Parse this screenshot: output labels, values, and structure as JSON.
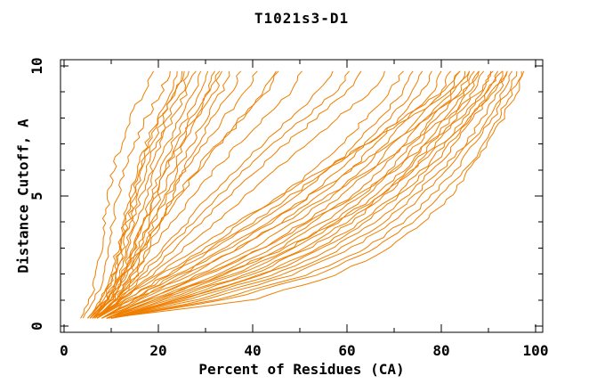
{
  "chart_data": {
    "type": "line",
    "title": "T1021s3-D1",
    "xlabel": "Percent of Residues (CA)",
    "ylabel": "Distance Cutoff, A",
    "xlim": [
      0,
      100
    ],
    "ylim": [
      0,
      10
    ],
    "xticks_major": [
      0,
      20,
      40,
      60,
      80,
      100
    ],
    "xticks_minor": [
      10,
      30,
      50,
      70,
      90
    ],
    "yticks_major": [
      0,
      5,
      10
    ],
    "yticks_minor": [
      1,
      2,
      3,
      4,
      6,
      7,
      8,
      9
    ],
    "grid": false,
    "legend_position": "none",
    "line_color": "#ef7f00",
    "axis_color": "#000000",
    "background_color": "#ffffff",
    "cutoffs": [
      0.3,
      1,
      2,
      3,
      4,
      5,
      6,
      7,
      8,
      9,
      9.8
    ],
    "series": [
      [
        3.5,
        5.5,
        7,
        8,
        8.5,
        9.5,
        10.5,
        12,
        14,
        17,
        19
      ],
      [
        4,
        6.5,
        8.5,
        9.5,
        10.5,
        11.5,
        13,
        15,
        17.5,
        20.5,
        22.5
      ],
      [
        5,
        8,
        10,
        11.5,
        12.5,
        14,
        15.5,
        17.5,
        20,
        22.5,
        24
      ],
      [
        5,
        8.5,
        10.5,
        12,
        13.5,
        15,
        16.5,
        18.5,
        21,
        23.5,
        25
      ],
      [
        5,
        8,
        10.5,
        12,
        13,
        14.5,
        16,
        18,
        20.5,
        23.5,
        25.5
      ],
      [
        5.5,
        9,
        11,
        12.5,
        14,
        15.5,
        17.5,
        19.5,
        22,
        25,
        26.5
      ],
      [
        5.5,
        9,
        11.5,
        13,
        14.5,
        16.5,
        18.5,
        20.5,
        23,
        26,
        28
      ],
      [
        6,
        9.5,
        12,
        13.5,
        15.5,
        17.5,
        19.5,
        22,
        24.5,
        27.5,
        29
      ],
      [
        6,
        10,
        12.5,
        14.5,
        16.5,
        18.5,
        20.5,
        23,
        26,
        29,
        30.5
      ],
      [
        6.5,
        10.5,
        13,
        15,
        17,
        19.5,
        21.5,
        24,
        27,
        30.5,
        32
      ],
      [
        6,
        10,
        13,
        15,
        17,
        19,
        21.5,
        24.5,
        27.5,
        31,
        33
      ],
      [
        6.5,
        11,
        14,
        16,
        18,
        20.5,
        23,
        25.5,
        28.5,
        32,
        33.5
      ],
      [
        7,
        11.5,
        14.5,
        17,
        19,
        21.5,
        24,
        27,
        30,
        33.5,
        35
      ],
      [
        7,
        12,
        15.5,
        18,
        20.5,
        23,
        25.5,
        28.5,
        31.5,
        35.5,
        37.5
      ],
      [
        5,
        9,
        12.5,
        15.5,
        18.5,
        22,
        25.5,
        29.5,
        34,
        38.5,
        41
      ],
      [
        6,
        9.5,
        13.5,
        17,
        20.5,
        24.5,
        28.5,
        33,
        38,
        43,
        45.5
      ],
      [
        5.5,
        9,
        13,
        16.5,
        20,
        24,
        28,
        32.5,
        37.5,
        42.5,
        45
      ],
      [
        6,
        10,
        14.5,
        18.5,
        23,
        27.5,
        32,
        37,
        42.5,
        48,
        50.5
      ],
      [
        6.5,
        11,
        16,
        21,
        26,
        31,
        36.5,
        42,
        48,
        54,
        57
      ],
      [
        6.5,
        11,
        16.5,
        22,
        27.5,
        33,
        38.5,
        44.5,
        51,
        57.5,
        60.5
      ],
      [
        7,
        11.5,
        17.5,
        23.5,
        29,
        35,
        41,
        47,
        53.5,
        60,
        63
      ],
      [
        7,
        12,
        19,
        25.5,
        32,
        38.5,
        45,
        51.5,
        58,
        65,
        68
      ],
      [
        6,
        12,
        21,
        30,
        38,
        46,
        53,
        59,
        64,
        69,
        72
      ],
      [
        7,
        13,
        23,
        32,
        41,
        49,
        56,
        62,
        67,
        72,
        74
      ],
      [
        7,
        14,
        25,
        35,
        44,
        52,
        58,
        64,
        69,
        74,
        76
      ],
      [
        8,
        15,
        27,
        37,
        46,
        54,
        61,
        66,
        71,
        76,
        78
      ],
      [
        8,
        16,
        29,
        40,
        49,
        57,
        63,
        68,
        73,
        78,
        80
      ],
      [
        8,
        17,
        31,
        42,
        51,
        59,
        65,
        70,
        75,
        80,
        82
      ],
      [
        8,
        18,
        33,
        44,
        53,
        61,
        67,
        72,
        77,
        82,
        84
      ],
      [
        9,
        19,
        34,
        46,
        55,
        63,
        69,
        74,
        78,
        83,
        85
      ],
      [
        9,
        20,
        36,
        48,
        57,
        64,
        70,
        75,
        79,
        84,
        86
      ],
      [
        9,
        21,
        37,
        49,
        58,
        66,
        72,
        77,
        81,
        85,
        87
      ],
      [
        10,
        22,
        39,
        51,
        60,
        67,
        73,
        78,
        82,
        86,
        88
      ],
      [
        10,
        23,
        40,
        52,
        61,
        68,
        74,
        79,
        83,
        87,
        89
      ],
      [
        10,
        24,
        42,
        54,
        63,
        70,
        76,
        81,
        85,
        89,
        90.5
      ],
      [
        10,
        25,
        43,
        55,
        64,
        71,
        77,
        82,
        86,
        90,
        92
      ],
      [
        10,
        26,
        45,
        57,
        66,
        73,
        78,
        83,
        87,
        91,
        93
      ],
      [
        10,
        28,
        47,
        59,
        68,
        74,
        80,
        85,
        89,
        92,
        94
      ],
      [
        10,
        30,
        49,
        61,
        70,
        76,
        81,
        86,
        90,
        93,
        95
      ],
      [
        10,
        32,
        52,
        64,
        72,
        78,
        83,
        87,
        91,
        94,
        96
      ],
      [
        10,
        34,
        54,
        66,
        74,
        80,
        85,
        89,
        92,
        95,
        97
      ],
      [
        9,
        40,
        58,
        69,
        76,
        82,
        86,
        90,
        93,
        96,
        97.5
      ],
      [
        7,
        13,
        22,
        31,
        40,
        48,
        56,
        64,
        72,
        80,
        84
      ],
      [
        8,
        14,
        24,
        34,
        43,
        52,
        61,
        69,
        77,
        85,
        88
      ],
      [
        8,
        15,
        26,
        37,
        47,
        56,
        65,
        73,
        81,
        88,
        91
      ],
      [
        9,
        17,
        30,
        42,
        52,
        62,
        70,
        77,
        84,
        90,
        93
      ],
      [
        7,
        12,
        20,
        28,
        37,
        46,
        55,
        64,
        73,
        82,
        86
      ],
      [
        10,
        19,
        34,
        47,
        58,
        67,
        74,
        80,
        86,
        91,
        94
      ]
    ]
  }
}
